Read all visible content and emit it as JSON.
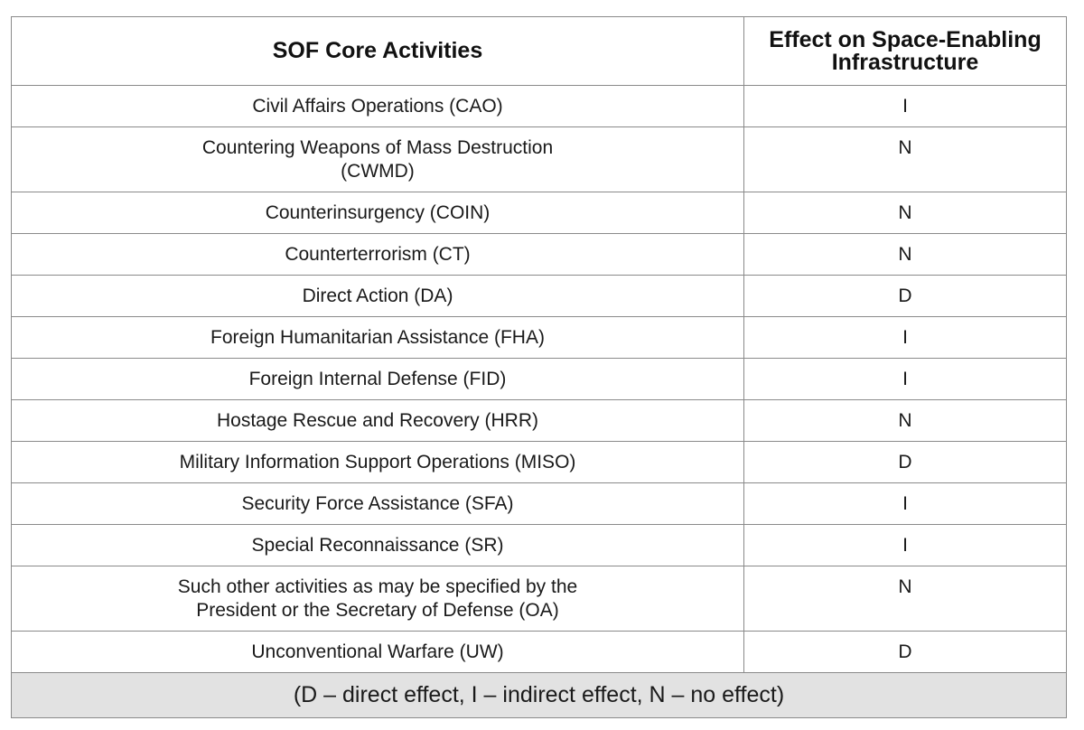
{
  "table": {
    "headers": [
      "SOF Core Activities",
      "Effect on Space-Enabling Infrastructure"
    ],
    "rows": [
      {
        "activity": "Civil Affairs Operations (CAO)",
        "effect": "I"
      },
      {
        "activity": "Countering Weapons of Mass Destruction (CWMD)",
        "effect": "N"
      },
      {
        "activity": "Counterinsurgency (COIN)",
        "effect": "N"
      },
      {
        "activity": "Counterterrorism (CT)",
        "effect": "N"
      },
      {
        "activity": "Direct Action (DA)",
        "effect": "D"
      },
      {
        "activity": "Foreign Humanitarian Assistance (FHA)",
        "effect": "I"
      },
      {
        "activity": "Foreign Internal Defense (FID)",
        "effect": "I"
      },
      {
        "activity": "Hostage Rescue and Recovery (HRR)",
        "effect": "N"
      },
      {
        "activity": "Military Information Support Operations (MISO)",
        "effect": "D"
      },
      {
        "activity": "Security Force Assistance (SFA)",
        "effect": "I"
      },
      {
        "activity": "Special Reconnaissance (SR)",
        "effect": "I"
      },
      {
        "activity": "Such other activities as may be specified by the President or the Secretary of Defense (OA)",
        "effect": "N"
      },
      {
        "activity": "Unconventional Warfare (UW)",
        "effect": "D"
      }
    ],
    "legend": "(D – direct effect, I – indirect effect, N – no effect)"
  },
  "colors": {
    "border": "#8a8a8a",
    "legend_background": "#e2e2e2",
    "text": "#1a1a1a"
  }
}
